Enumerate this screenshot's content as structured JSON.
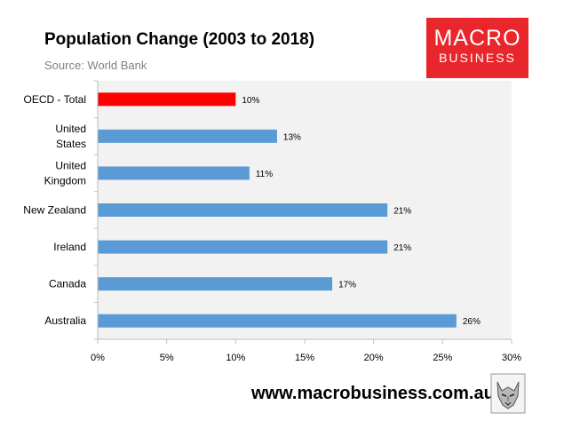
{
  "chart_data": {
    "type": "bar",
    "orientation": "horizontal",
    "title": "Population Change (2003 to 2018)",
    "subtitle": "Source: World Bank",
    "categories": [
      [
        "OECD - Total"
      ],
      [
        "United",
        "States"
      ],
      [
        "United",
        "Kingdom"
      ],
      [
        "New Zealand"
      ],
      [
        "Ireland"
      ],
      [
        "Canada"
      ],
      [
        "Australia"
      ]
    ],
    "values": [
      10,
      13,
      11,
      21,
      21,
      17,
      26
    ],
    "data_labels": [
      "10%",
      "13%",
      "11%",
      "21%",
      "21%",
      "17%",
      "26%"
    ],
    "bar_colors": [
      "#ff0000",
      "#5b9bd5",
      "#5b9bd5",
      "#5b9bd5",
      "#5b9bd5",
      "#5b9bd5",
      "#5b9bd5"
    ],
    "xlim": [
      0,
      30
    ],
    "xticks": [
      0,
      5,
      10,
      15,
      20,
      25,
      30
    ],
    "xtick_labels": [
      "0%",
      "5%",
      "10%",
      "15%",
      "20%",
      "25%",
      "30%"
    ],
    "plot_background": "#f2f2f2",
    "xlabel": "",
    "ylabel": ""
  },
  "branding": {
    "logo_line1": "MACRO",
    "logo_line2": "BUSINESS",
    "logo_color": "#e8262b",
    "url": "www.macrobusiness.com.au",
    "mascot": "wolf-icon"
  }
}
